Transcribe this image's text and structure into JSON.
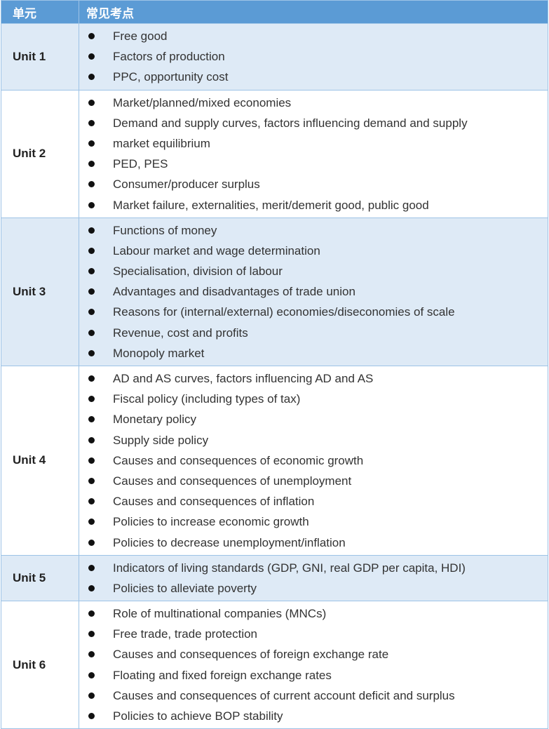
{
  "header": {
    "unit": "单元",
    "topics": "常见考点"
  },
  "rows": [
    {
      "unit": "Unit 1",
      "topics": [
        "Free good",
        "Factors of production",
        "PPC, opportunity cost"
      ]
    },
    {
      "unit": "Unit 2",
      "topics": [
        "Market/planned/mixed economies",
        "Demand and supply curves, factors influencing demand and supply",
        "market equilibrium",
        "PED, PES",
        "Consumer/producer surplus",
        "Market failure, externalities, merit/demerit good, public good"
      ]
    },
    {
      "unit": "Unit 3",
      "topics": [
        "Functions of money",
        "Labour market and wage determination",
        "Specialisation, division of labour",
        "Advantages and disadvantages of trade union",
        "Reasons for (internal/external) economies/diseconomies of scale",
        "Revenue, cost and profits",
        "Monopoly market"
      ]
    },
    {
      "unit": "Unit 4",
      "topics": [
        "AD and AS curves, factors influencing AD and AS",
        "Fiscal policy (including types of tax)",
        "Monetary policy",
        "Supply side policy",
        "Causes and consequences of economic growth",
        "Causes and consequences of unemployment",
        "Causes and consequences of inflation",
        "Policies to increase economic growth",
        "Policies to decrease unemployment/inflation"
      ]
    },
    {
      "unit": "Unit 5",
      "topics": [
        "Indicators of living standards (GDP, GNI, real GDP per capita, HDI)",
        "Policies to alleviate poverty"
      ]
    },
    {
      "unit": "Unit 6",
      "topics": [
        "Role of multinational companies (MNCs)",
        "Free trade, trade protection",
        "Causes and consequences of foreign exchange rate",
        "Floating and fixed foreign exchange rates",
        "Causes and consequences of current account deficit and surplus",
        "Policies to achieve BOP stability"
      ]
    }
  ]
}
